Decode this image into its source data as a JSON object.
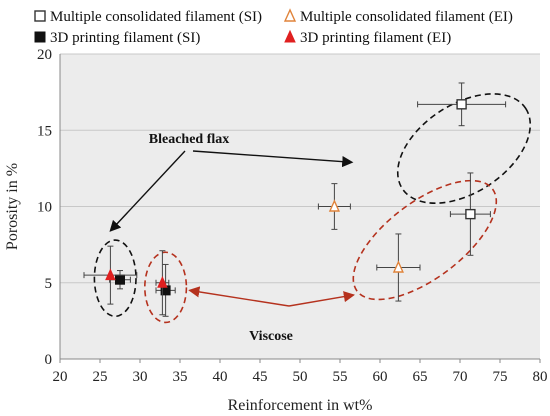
{
  "chart_data": {
    "type": "scatter",
    "xlabel": "Reinforcement in wt%",
    "ylabel": "Porosity in %",
    "xlim": [
      20,
      80
    ],
    "ylim": [
      0,
      20
    ],
    "xticks": [
      "20",
      "25",
      "30",
      "35",
      "40",
      "45",
      "50",
      "55",
      "60",
      "65",
      "70",
      "75",
      "80"
    ],
    "yticks": [
      "0",
      "5",
      "10",
      "15",
      "20"
    ],
    "grid": "horizontal",
    "legend": "top",
    "series": [
      {
        "name": "Multiple consolidated filament (SI)",
        "marker": "square-open",
        "color": "#333333",
        "points": [
          {
            "x": 70.2,
            "y": 16.7,
            "xerr": 5.5,
            "yerr": 1.4
          },
          {
            "x": 71.3,
            "y": 9.5,
            "xerr": 2.5,
            "yerr": 2.7
          }
        ]
      },
      {
        "name": "Multiple consolidated filament (EI)",
        "marker": "triangle-open",
        "color": "#e0833a",
        "points": [
          {
            "x": 54.3,
            "y": 10.0,
            "xerr": 2.0,
            "yerr": 1.5
          },
          {
            "x": 62.3,
            "y": 6.0,
            "xerr": 2.7,
            "yerr": 2.2
          }
        ]
      },
      {
        "name": "3D printing filament (SI)",
        "marker": "square-filled",
        "color": "#111111",
        "points": [
          {
            "x": 27.5,
            "y": 5.2,
            "xerr": 1.3,
            "yerr": 0.6
          },
          {
            "x": 33.2,
            "y": 4.5,
            "xerr": 1.2,
            "yerr": 1.7
          }
        ]
      },
      {
        "name": "3D printing filament (EI)",
        "marker": "triangle-filled",
        "color": "#e02020",
        "points": [
          {
            "x": 26.3,
            "y": 5.5,
            "xerr": 3.3,
            "yerr": 1.9
          },
          {
            "x": 32.8,
            "y": 5.0,
            "xerr": 0.8,
            "yerr": 2.1
          }
        ]
      }
    ],
    "annotations": [
      {
        "text": "Bleached flax",
        "color": "#111111"
      },
      {
        "text": "Viscose",
        "color": "#111111"
      }
    ],
    "groups": [
      {
        "label": "Bleached flax",
        "color": "#111111"
      },
      {
        "label": "Viscose",
        "color": "#b5321e"
      }
    ]
  }
}
